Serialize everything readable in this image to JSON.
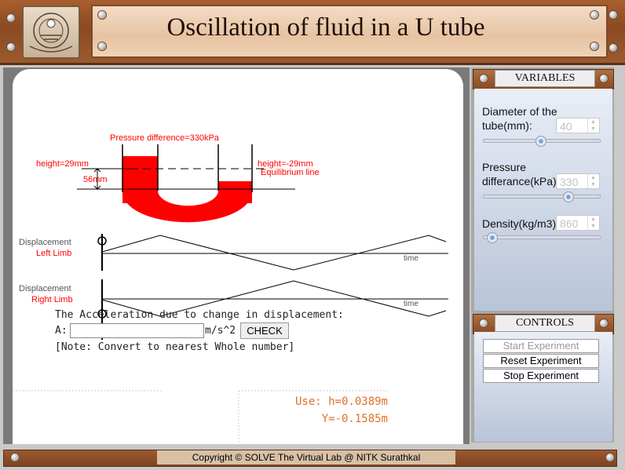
{
  "header": {
    "title": "Oscillation of fluid in a U tube",
    "logo_alt": "NITK"
  },
  "simulation": {
    "pressure_label": "Pressure difference=330kPa",
    "height_left_label": "height=29mm",
    "height_right_label": "height=-29mm",
    "equilibrium_label": "Equilibrium line",
    "span_label": "56mm",
    "graph_left_label_1": "Displacement",
    "graph_left_label_2": "Left Limb",
    "graph_right_label_1": "Displacement",
    "graph_right_label_2": "Right Limb",
    "time_label": "time",
    "fluid_color": "#ff0000"
  },
  "question": {
    "prompt": "The Acceleration due to change in displacement:",
    "input_prefix": "A:",
    "input_value": "",
    "unit": "m/s^2",
    "check_label": "CHECK",
    "note": "[Note: Convert to nearest Whole number]"
  },
  "readout": {
    "h": "Use: h=0.0389m",
    "y": "Y=-0.1585m"
  },
  "variables": {
    "title": "VARIABLES",
    "diameter": {
      "label_1": "Diameter of the",
      "label_2": "tube(mm):",
      "value": "40",
      "slider_fraction": 0.49
    },
    "pressure": {
      "label_1": "Pressure",
      "label_2": "differance(kPa):",
      "value": "330",
      "slider_fraction": 0.75
    },
    "density": {
      "label": "Density(kg/m3):",
      "value": "860",
      "slider_fraction": 0.04
    }
  },
  "controls": {
    "title": "CONTROLS",
    "start": "Start Experiment",
    "reset": "Reset Experiment",
    "stop": "Stop Experiment"
  },
  "footer": {
    "text": "Copyright © SOLVE The Virtual Lab @ NITK Surathkal"
  }
}
